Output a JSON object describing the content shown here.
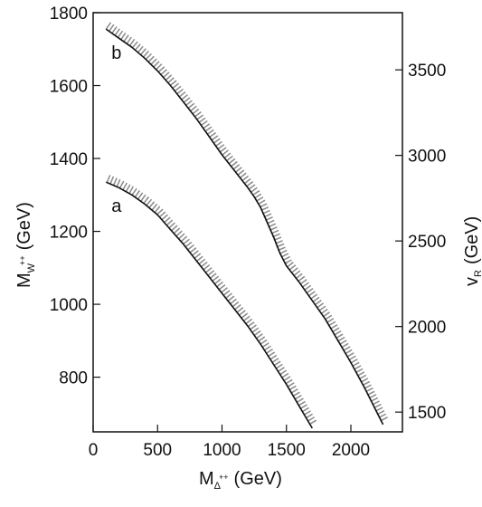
{
  "chart_data": {
    "type": "line",
    "title": "",
    "xlabel": {
      "main": "M",
      "sub": "Δ",
      "sup": "++",
      "subsub": "R",
      "unit": "(GeV)"
    },
    "ylabel": {
      "main": "M",
      "sub": "W",
      "sup": "++",
      "subsub": "R",
      "unit": "(GeV)"
    },
    "y2label": {
      "main": "v",
      "sub": "R",
      "unit": "(GeV)"
    },
    "xlim": [
      0,
      2400
    ],
    "ylim": [
      650,
      1800
    ],
    "xticks": [
      0,
      500,
      1000,
      1500,
      2000
    ],
    "yticks": [
      800,
      1000,
      1200,
      1400,
      1600,
      1800
    ],
    "y2ticks": [
      1500,
      2000,
      2500,
      3000,
      3500
    ],
    "y2_per_y": 2.13,
    "grid": false,
    "series": [
      {
        "name": "b",
        "x": [
          100,
          200,
          300,
          400,
          500,
          600,
          700,
          800,
          900,
          1000,
          1100,
          1200,
          1250,
          1300,
          1350,
          1400,
          1450,
          1500,
          1600,
          1700,
          1800,
          1900,
          2000,
          2100,
          2200,
          2250
        ],
        "y": [
          1755,
          1730,
          1705,
          1675,
          1640,
          1600,
          1555,
          1510,
          1460,
          1410,
          1365,
          1320,
          1295,
          1265,
          1225,
          1185,
          1140,
          1105,
          1060,
          1010,
          960,
          900,
          840,
          775,
          705,
          670
        ]
      },
      {
        "name": "a",
        "x": [
          100,
          200,
          300,
          400,
          500,
          600,
          700,
          800,
          900,
          1000,
          1100,
          1200,
          1300,
          1400,
          1500,
          1600,
          1650,
          1700
        ],
        "y": [
          1335,
          1320,
          1300,
          1275,
          1245,
          1205,
          1165,
          1120,
          1075,
          1030,
          985,
          940,
          890,
          835,
          780,
          720,
          690,
          660
        ]
      }
    ]
  }
}
